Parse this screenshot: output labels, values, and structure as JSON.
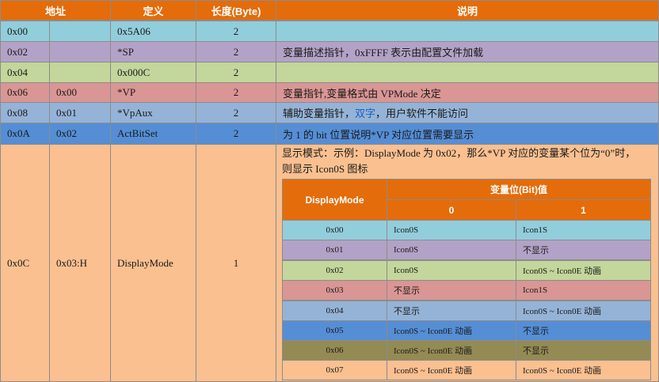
{
  "header": {
    "address": "地址",
    "definition": "定义",
    "length": "长度(Byte)",
    "description": "说明"
  },
  "rows": [
    {
      "addr": "0x00",
      "addr2": "",
      "def": "0x5A06",
      "len": "2",
      "desc": "",
      "color": "#92cddc"
    },
    {
      "addr": "0x02",
      "addr2": "",
      "def": "*SP",
      "len": "2",
      "desc": "变量描述指针，0xFFFF 表示由配置文件加载",
      "color": "#b3a2c7"
    },
    {
      "addr": "0x04",
      "addr2": "",
      "def": "0x000C",
      "len": "2",
      "desc": "",
      "color": "#c3d69b"
    },
    {
      "addr": "0x06",
      "addr2": "0x00",
      "def": "*VP",
      "len": "2",
      "desc": "变量指针,变量格式由 VPMode 决定",
      "color": "#d99694"
    },
    {
      "addr": "0x08",
      "addr2": "0x01",
      "def": "*VpAux",
      "len": "2",
      "desc_prefix": "辅助变量指针，",
      "desc_highlight": "双字",
      "desc_suffix": "，用户软件不能访问",
      "color": "#95b3d7"
    },
    {
      "addr": "0x0A",
      "addr2": "0x02",
      "def": "ActBitSet",
      "len": "2",
      "desc": "为 1 的 bit 位置说明*VP 对应位置需要显示",
      "color": "#558ed5"
    }
  ],
  "display_row": {
    "addr": "0x0C",
    "addr2": "0x03:H",
    "def": "DisplayMode",
    "len": "1",
    "desc_line1": "显示模式：示例：DisplayMode 为 0x02，那么*VP 对应的变量某个位为“0”时，",
    "desc_line2": "则显示 Icon0S 图标",
    "color": "#fac090"
  },
  "subtable": {
    "header_mode": "DisplayMode",
    "header_bits": "变量位(Bit)值",
    "header_bit0": "0",
    "header_bit1": "1",
    "rows": [
      {
        "mode": "0x00",
        "b0": "Icon0S",
        "b1": "Icon1S",
        "color": "#92cddc"
      },
      {
        "mode": "0x01",
        "b0": "Icon0S",
        "b1": "不显示",
        "color": "#b3a2c7"
      },
      {
        "mode": "0x02",
        "b0": "Icon0S",
        "b1": "Icon0S ~ Icon0E 动画",
        "color": "#c3d69b"
      },
      {
        "mode": "0x03",
        "b0": "不显示",
        "b1": "Icon1S",
        "color": "#d99694"
      },
      {
        "mode": "0x04",
        "b0": "不显示",
        "b1": "Icon0S ~ Icon0E 动画",
        "color": "#95b3d7"
      },
      {
        "mode": "0x05",
        "b0": "Icon0S ~ Icon0E 动画",
        "b1": "不显示",
        "color": "#558ed5"
      },
      {
        "mode": "0x06",
        "b0": "Icon0S ~ Icon0E 动画",
        "b1": "不显示",
        "color": "#948a54"
      },
      {
        "mode": "0x07",
        "b0": "Icon0S ~ Icon0E 动画",
        "b1": "Icon0S ~ Icon0E 动画",
        "color": "#fac090"
      }
    ]
  },
  "colors": {
    "header": "#e46c0a",
    "highlight_text": "#1f5fbf"
  }
}
